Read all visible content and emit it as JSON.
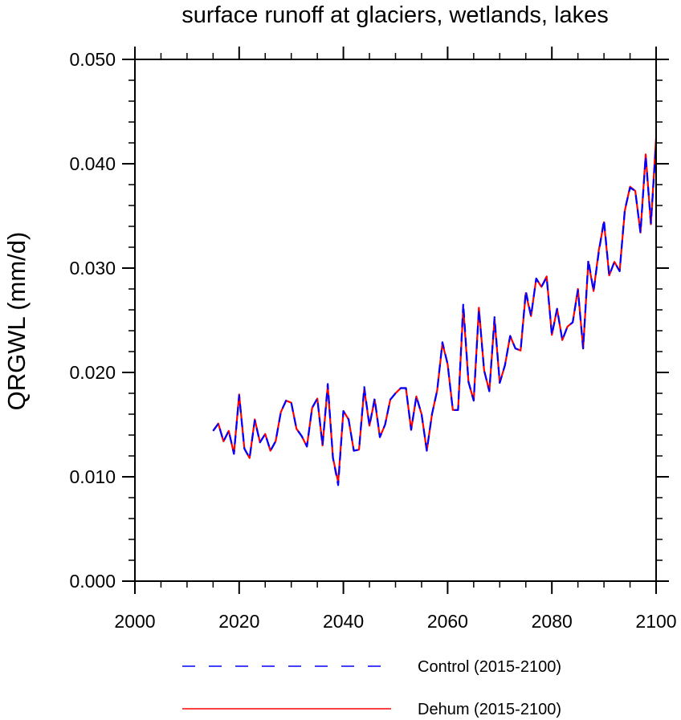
{
  "chart_data": {
    "type": "line",
    "title": "surface runoff at glaciers, wetlands, lakes",
    "xlabel": "",
    "ylabel": "QRGWL  (mm/d)",
    "xlim": [
      2000,
      2100
    ],
    "ylim": [
      0.0,
      0.05
    ],
    "xticks": [
      "2000",
      "2020",
      "2040",
      "2060",
      "2080",
      "2100"
    ],
    "yticks": [
      "0.000",
      "0.010",
      "0.020",
      "0.030",
      "0.040",
      "0.050"
    ],
    "grid": false,
    "legend_position": "bottom",
    "x": [
      2015,
      2016,
      2017,
      2018,
      2019,
      2020,
      2021,
      2022,
      2023,
      2024,
      2025,
      2026,
      2027,
      2028,
      2029,
      2030,
      2031,
      2032,
      2033,
      2034,
      2035,
      2036,
      2037,
      2038,
      2039,
      2040,
      2041,
      2042,
      2043,
      2044,
      2045,
      2046,
      2047,
      2048,
      2049,
      2050,
      2051,
      2052,
      2053,
      2054,
      2055,
      2056,
      2057,
      2058,
      2059,
      2060,
      2061,
      2062,
      2063,
      2064,
      2065,
      2066,
      2067,
      2068,
      2069,
      2070,
      2071,
      2072,
      2073,
      2074,
      2075,
      2076,
      2077,
      2078,
      2079,
      2080,
      2081,
      2082,
      2083,
      2084,
      2085,
      2086,
      2087,
      2088,
      2089,
      2090,
      2091,
      2092,
      2093,
      2094,
      2095,
      2096,
      2097,
      2098,
      2099,
      2100
    ],
    "series": [
      {
        "name": "Control (2015-2100)",
        "color": "#0000ff",
        "style": "dashed",
        "values": [
          0.0144,
          0.0151,
          0.0134,
          0.0144,
          0.0122,
          0.0178,
          0.0127,
          0.0118,
          0.0154,
          0.0133,
          0.0141,
          0.0125,
          0.0134,
          0.0162,
          0.0173,
          0.0171,
          0.0146,
          0.0139,
          0.0129,
          0.0166,
          0.0175,
          0.013,
          0.0189,
          0.0118,
          0.0092,
          0.0163,
          0.0155,
          0.0125,
          0.0126,
          0.0186,
          0.0149,
          0.0175,
          0.0138,
          0.015,
          0.0174,
          0.018,
          0.0185,
          0.0185,
          0.0145,
          0.0177,
          0.016,
          0.0125,
          0.016,
          0.0183,
          0.0229,
          0.0208,
          0.0164,
          0.0164,
          0.0266,
          0.0191,
          0.0173,
          0.026,
          0.0202,
          0.0182,
          0.0253,
          0.019,
          0.0207,
          0.0235,
          0.0223,
          0.0221,
          0.0278,
          0.0254,
          0.029,
          0.0282,
          0.0291,
          0.0236,
          0.0261,
          0.0231,
          0.0244,
          0.0248,
          0.0279,
          0.0223,
          0.0308,
          0.0278,
          0.0315,
          0.0346,
          0.0293,
          0.0306,
          0.0297,
          0.0356,
          0.0377,
          0.0374,
          0.0334,
          0.0407,
          0.0343,
          0.042
        ]
      },
      {
        "name": "Dehum (2015-2100)",
        "color": "#ff0000",
        "style": "solid",
        "values": [
          0.0144,
          0.0151,
          0.0134,
          0.0144,
          0.0122,
          0.0179,
          0.0127,
          0.0118,
          0.0155,
          0.0133,
          0.0141,
          0.0125,
          0.0134,
          0.0162,
          0.0173,
          0.0171,
          0.0146,
          0.0139,
          0.0129,
          0.0166,
          0.0175,
          0.013,
          0.0187,
          0.0118,
          0.0095,
          0.0163,
          0.0155,
          0.0125,
          0.0126,
          0.0184,
          0.0149,
          0.0174,
          0.0138,
          0.015,
          0.0174,
          0.018,
          0.0185,
          0.0185,
          0.0145,
          0.0177,
          0.016,
          0.0125,
          0.016,
          0.0183,
          0.0228,
          0.0208,
          0.0164,
          0.0164,
          0.0262,
          0.0191,
          0.0173,
          0.0262,
          0.0202,
          0.0182,
          0.0251,
          0.019,
          0.0207,
          0.0235,
          0.0223,
          0.0221,
          0.0276,
          0.0254,
          0.029,
          0.0282,
          0.0292,
          0.0236,
          0.0261,
          0.0231,
          0.0244,
          0.0248,
          0.028,
          0.0223,
          0.0306,
          0.0278,
          0.0317,
          0.0344,
          0.0293,
          0.0306,
          0.0297,
          0.0355,
          0.0378,
          0.0374,
          0.0334,
          0.0409,
          0.0342,
          0.0425
        ]
      }
    ]
  }
}
